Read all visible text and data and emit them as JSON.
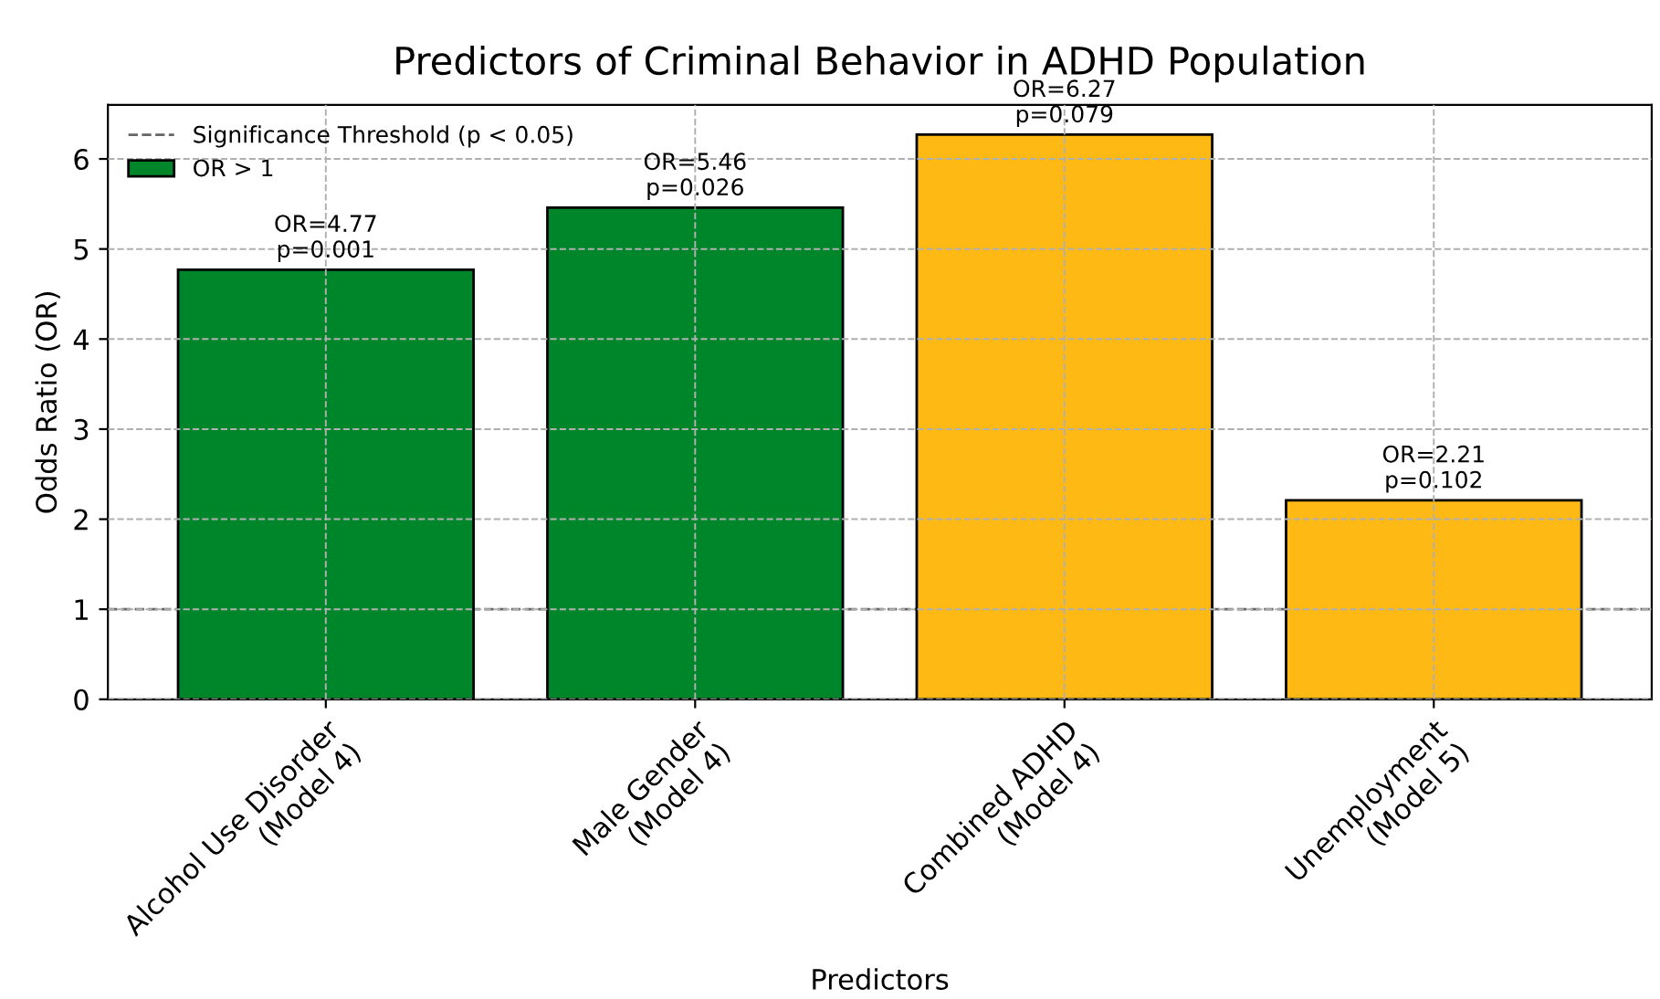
{
  "chart_data": {
    "type": "bar",
    "title": "Predictors of Criminal Behavior in ADHD Population",
    "xlabel": "Predictors",
    "ylabel": "Odds Ratio (OR)",
    "categories": [
      "Alcohol Use Disorder\n(Model 4)",
      "Male Gender\n(Model 4)",
      "Combined ADHD\n(Model 4)",
      "Unemployment\n(Model 5)"
    ],
    "series": [
      {
        "name": "OR > 1",
        "color": "#00862a",
        "colors": [
          "#00862a",
          "#00862a",
          "#ffb914",
          "#ffb914"
        ],
        "values": [
          4.77,
          5.46,
          6.27,
          2.21
        ],
        "value_labels": [
          "OR=4.77\np=0.001",
          "OR=5.46\np=0.026",
          "OR=6.27\np=0.079",
          "OR=2.21\np=0.102"
        ]
      }
    ],
    "ref_lines": [
      {
        "axis": "y",
        "value": 1,
        "label": "Significance Threshold (p < 0.05)",
        "color": "#666666",
        "line_style": "dashed"
      }
    ],
    "ylim": [
      0,
      6.6
    ],
    "yticks": [
      0,
      1,
      2,
      3,
      4,
      5,
      6
    ],
    "grid": true,
    "legend": "top left"
  }
}
